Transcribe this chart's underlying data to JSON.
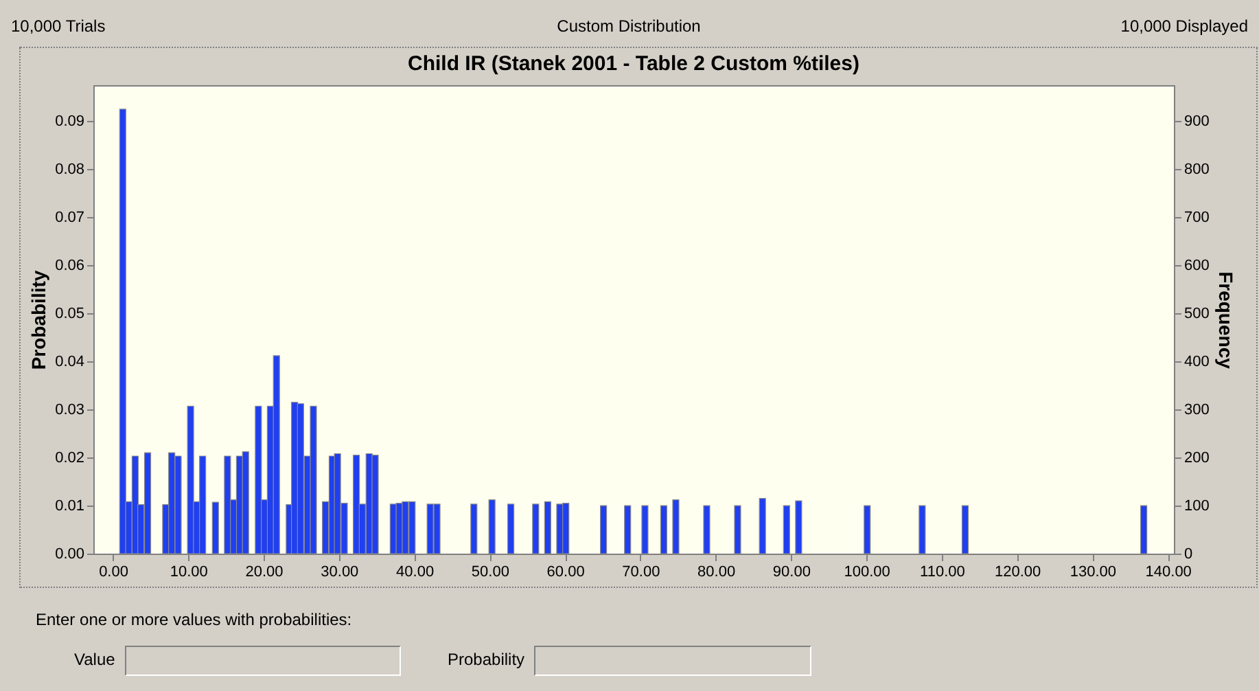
{
  "chart_data": {
    "type": "bar",
    "title": "Child IR (Stanek 2001 - Table 2 Custom %tiles)",
    "ylabel": "Probability",
    "y2label": "Frequency",
    "annotations": [
      "10,000 Trials",
      "Custom Distribution",
      "10,000 Displayed",
      "Enter one or more values with probabilities:",
      "Value",
      "Probability"
    ],
    "x": [
      1.3,
      2.1,
      2.95,
      3.7,
      4.6,
      7.0,
      7.8,
      8.65,
      10.3,
      11.1,
      11.9,
      13.6,
      15.2,
      16.0,
      16.8,
      17.6,
      19.3,
      20.1,
      20.9,
      21.7,
      23.4,
      24.1,
      24.9,
      25.8,
      26.6,
      28.2,
      29.1,
      29.8,
      30.7,
      32.3,
      33.1,
      34.0,
      34.8,
      37.2,
      38.0,
      38.8,
      39.7,
      42.1,
      43.0,
      47.9,
      50.3,
      52.8,
      56.1,
      57.7,
      59.3,
      60.1,
      65.1,
      68.3,
      70.6,
      73.1,
      74.7,
      78.8,
      82.9,
      86.2,
      89.4,
      91.0,
      100.1,
      107.4,
      113.1,
      136.8
    ],
    "values": [
      0.0925,
      0.0108,
      0.0203,
      0.0102,
      0.021,
      0.0102,
      0.021,
      0.0203,
      0.0307,
      0.0108,
      0.0203,
      0.0107,
      0.0203,
      0.0112,
      0.0203,
      0.0212,
      0.0307,
      0.0112,
      0.0307,
      0.0412,
      0.0102,
      0.0315,
      0.0312,
      0.0203,
      0.0307,
      0.0108,
      0.0203,
      0.0208,
      0.0105,
      0.0205,
      0.0103,
      0.0208,
      0.0205,
      0.0103,
      0.0105,
      0.0108,
      0.0108,
      0.0103,
      0.0103,
      0.0103,
      0.0112,
      0.0103,
      0.0103,
      0.0108,
      0.0103,
      0.0105,
      0.01,
      0.01,
      0.01,
      0.01,
      0.0112,
      0.01,
      0.01,
      0.0115,
      0.01,
      0.011,
      0.01,
      0.01,
      0.01,
      0.01
    ],
    "color": "#1f3ff0",
    "xlim": [
      -2.6,
      140.8
    ],
    "xticks": [
      {
        "value": 0,
        "label": "0.00"
      },
      {
        "value": 10,
        "label": "10.00"
      },
      {
        "value": 20,
        "label": "20.00"
      },
      {
        "value": 30,
        "label": "30.00"
      },
      {
        "value": 40,
        "label": "40.00"
      },
      {
        "value": 50,
        "label": "50.00"
      },
      {
        "value": 60,
        "label": "60.00"
      },
      {
        "value": 70,
        "label": "70.00"
      },
      {
        "value": 80,
        "label": "80.00"
      },
      {
        "value": 90,
        "label": "90.00"
      },
      {
        "value": 100,
        "label": "100.00"
      },
      {
        "value": 110,
        "label": "110.00"
      },
      {
        "value": 120,
        "label": "120.00"
      },
      {
        "value": 130,
        "label": "130.00"
      },
      {
        "value": 140,
        "label": "140.00"
      }
    ],
    "ylim": [
      0,
      0.0975
    ],
    "yticks": [
      {
        "value": 0,
        "label": "0.00"
      },
      {
        "value": 0.01,
        "label": "0.01"
      },
      {
        "value": 0.02,
        "label": "0.02"
      },
      {
        "value": 0.03,
        "label": "0.03"
      },
      {
        "value": 0.04,
        "label": "0.04"
      },
      {
        "value": 0.05,
        "label": "0.05"
      },
      {
        "value": 0.06,
        "label": "0.06"
      },
      {
        "value": 0.07,
        "label": "0.07"
      },
      {
        "value": 0.08,
        "label": "0.08"
      },
      {
        "value": 0.09,
        "label": "0.09"
      }
    ],
    "y2lim": [
      0,
      975
    ],
    "y2ticks": [
      0,
      100,
      200,
      300,
      400,
      500,
      600,
      700,
      800,
      900
    ]
  }
}
